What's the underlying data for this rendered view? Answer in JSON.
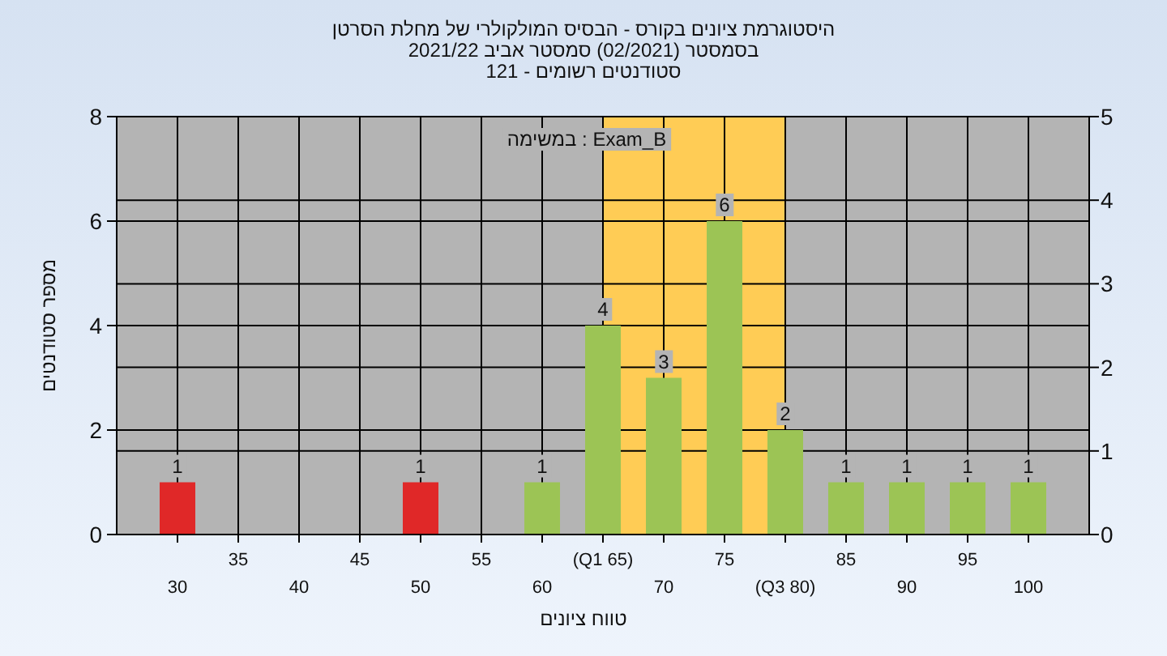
{
  "chart_data": {
    "type": "bar",
    "title": "היסטוגרמת ציונים בקורס - הבסיס המולקולרי של מחלת הסרטן",
    "subtitle": "בסמסטר (02/2021) סמסטר אביב 2021/22\nסטודנטים רשומים - 121",
    "xlabel": "טווח ציונים",
    "ylabel": "מספר סטודנטים",
    "annotations": [
      "במשימה : Exam_B"
    ],
    "categories": [
      "30",
      "35",
      "40",
      "45",
      "50",
      "55",
      "60",
      "(Q1 65)",
      "70",
      "75",
      "(Q3 80)",
      "85",
      "90",
      "95",
      "100"
    ],
    "values": [
      1,
      0,
      0,
      0,
      1,
      0,
      1,
      4,
      3,
      6,
      2,
      1,
      1,
      1,
      1
    ],
    "value_labels": [
      "1",
      null,
      null,
      null,
      "1",
      null,
      "1",
      "4",
      "3",
      "6",
      "2",
      "1",
      "1",
      "1",
      "1"
    ],
    "colors": [
      "#e02828",
      "#9cc455",
      "#9cc455",
      "#9cc455",
      "#e02828",
      "#9cc455",
      "#9cc455",
      "#9cc455",
      "#9cc455",
      "#9cc455",
      "#9cc455",
      "#9cc455",
      "#9cc455",
      "#9cc455",
      "#9cc455"
    ],
    "ylim": [
      0,
      8
    ],
    "yticks": [
      0,
      2,
      4,
      6,
      8
    ],
    "y2lim": [
      0,
      5
    ],
    "y2ticks": [
      0,
      1,
      2,
      3,
      4,
      5
    ],
    "bands": [
      {
        "axis": "x",
        "from": "(Q1 65)",
        "to": "(Q3 80)",
        "color": "#ffcc55"
      }
    ],
    "grid": true
  }
}
